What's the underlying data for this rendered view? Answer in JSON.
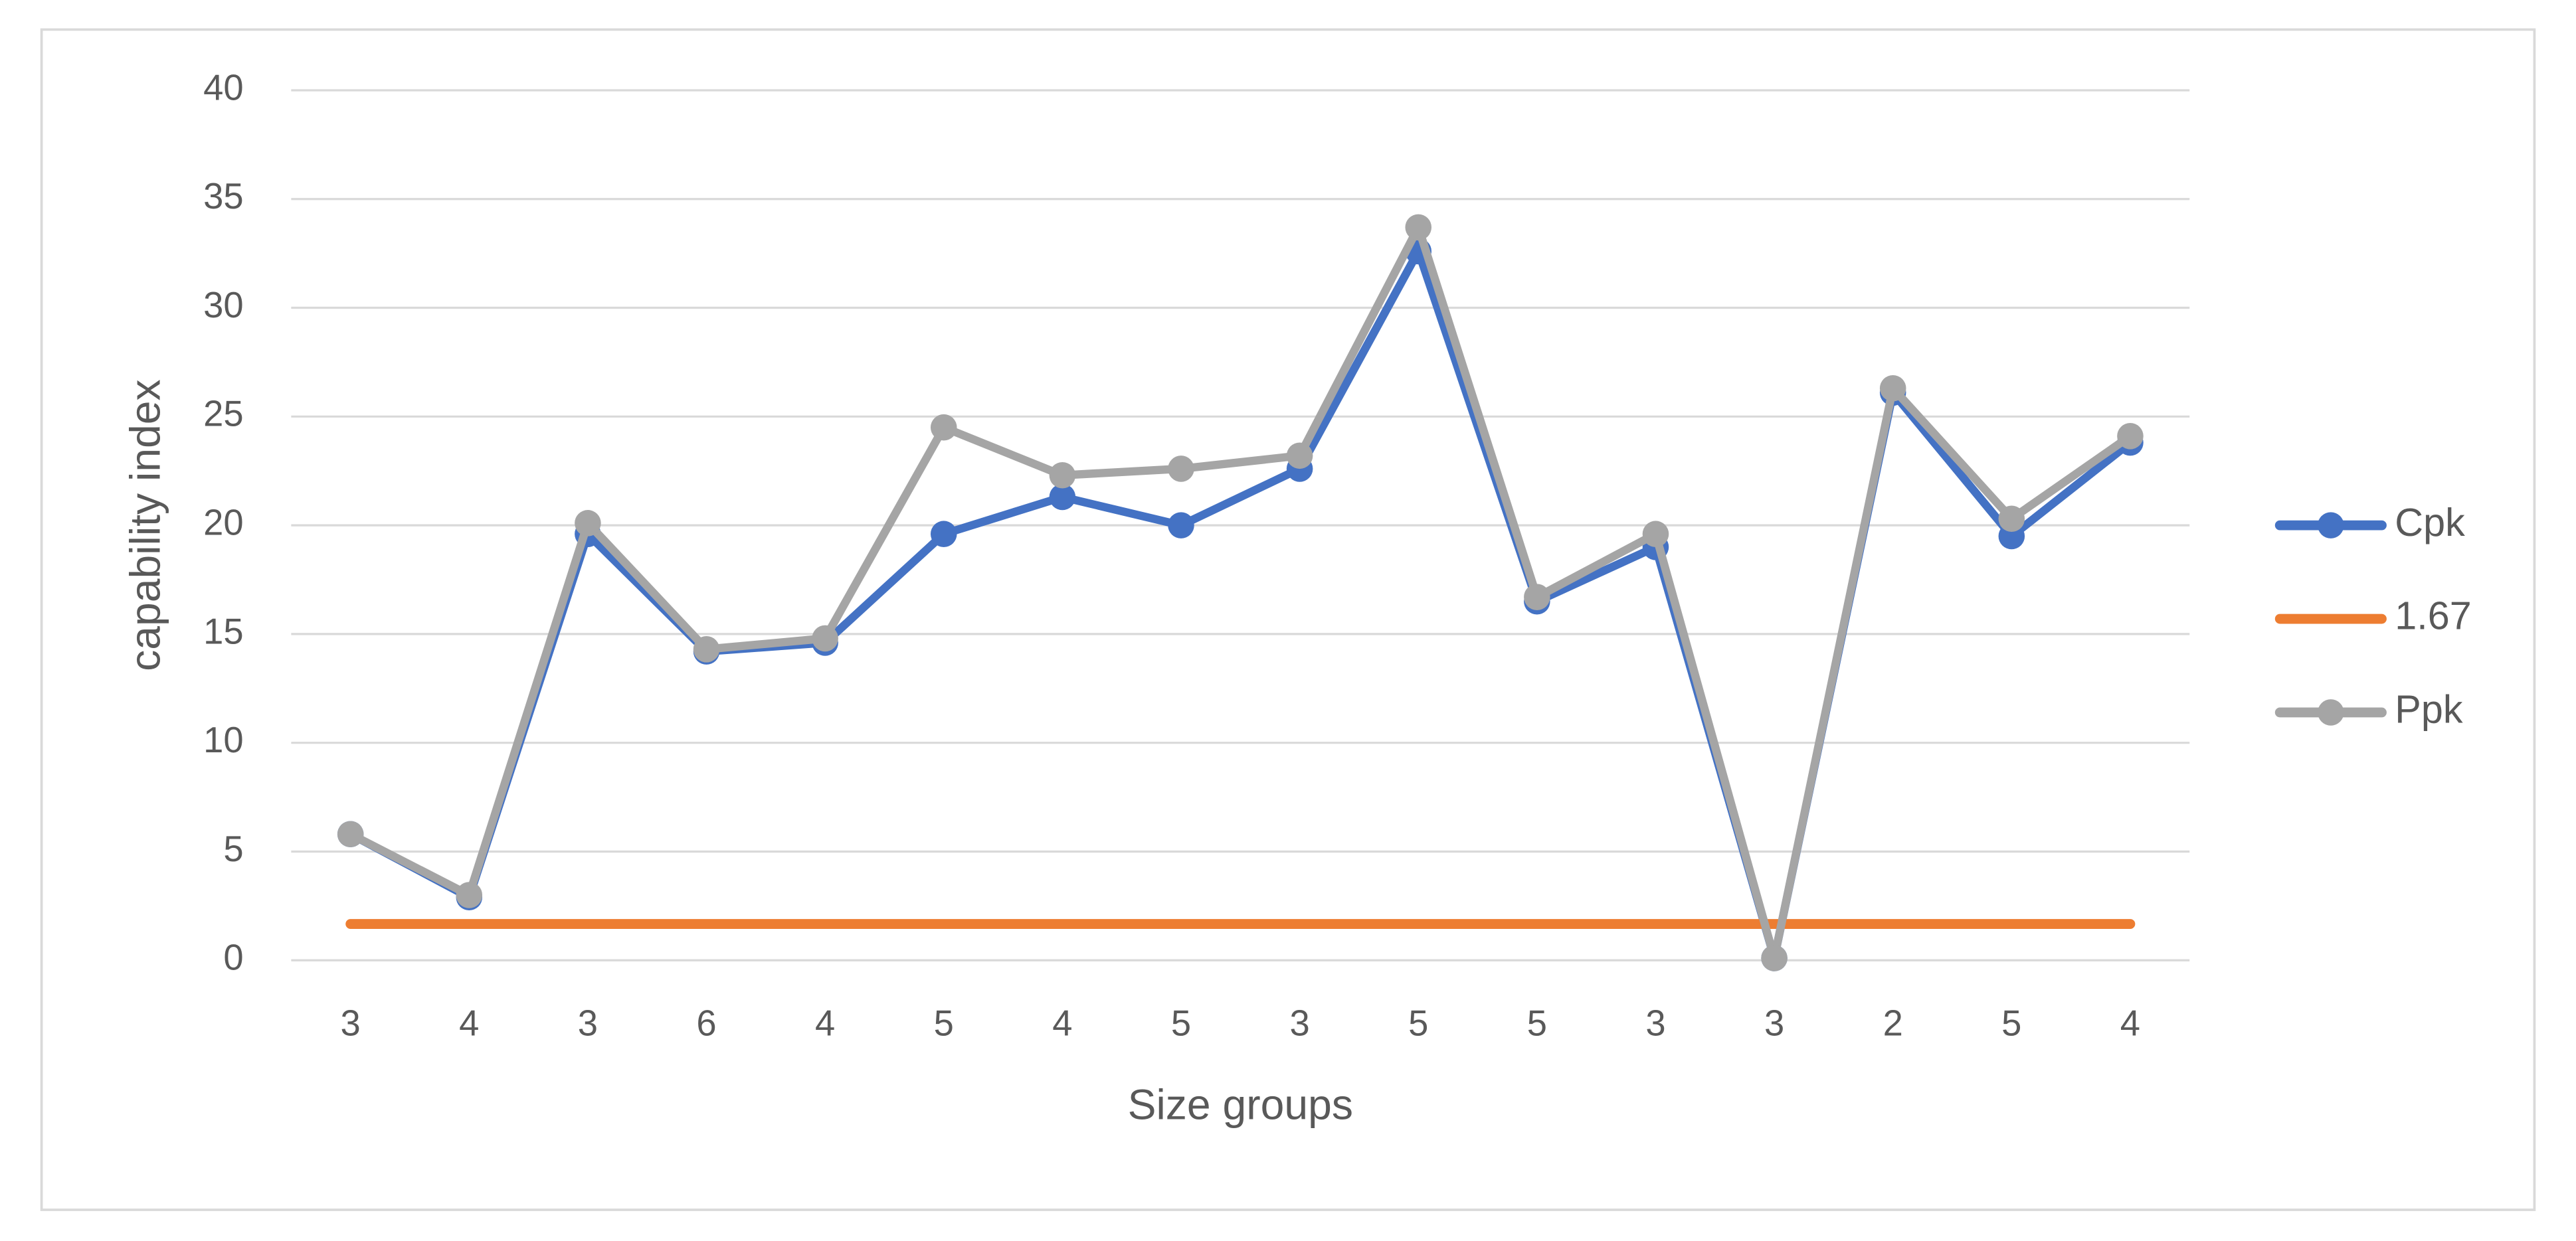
{
  "chart_data": {
    "type": "line",
    "x_label": "Size groups",
    "y_label": "capability index",
    "categories": [
      "3",
      "4",
      "3",
      "6",
      "4",
      "5",
      "4",
      "5",
      "3",
      "5",
      "5",
      "3",
      "3",
      "2",
      "5",
      "4"
    ],
    "series": [
      {
        "name": "Cpk",
        "color": "#4472c4",
        "markers": true,
        "values": [
          5.8,
          2.9,
          19.6,
          14.2,
          14.6,
          19.6,
          21.3,
          20.0,
          22.6,
          32.6,
          16.5,
          19.0,
          0.1,
          26.1,
          19.5,
          23.8
        ]
      },
      {
        "name": "1.67",
        "color": "#ed7d31",
        "markers": false,
        "values": [
          1.67,
          1.67,
          1.67,
          1.67,
          1.67,
          1.67,
          1.67,
          1.67,
          1.67,
          1.67,
          1.67,
          1.67,
          1.67,
          1.67,
          1.67,
          1.67
        ]
      },
      {
        "name": "Ppk",
        "color": "#a5a5a5",
        "markers": true,
        "values": [
          5.8,
          3.0,
          20.1,
          14.3,
          14.8,
          24.5,
          22.3,
          22.6,
          23.2,
          33.7,
          16.7,
          19.6,
          0.1,
          26.3,
          20.3,
          24.1
        ]
      }
    ],
    "ylim": [
      0,
      40
    ],
    "yticks": [
      0,
      5,
      10,
      15,
      20,
      25,
      30,
      35,
      40
    ],
    "grid": true,
    "legend": "right"
  }
}
